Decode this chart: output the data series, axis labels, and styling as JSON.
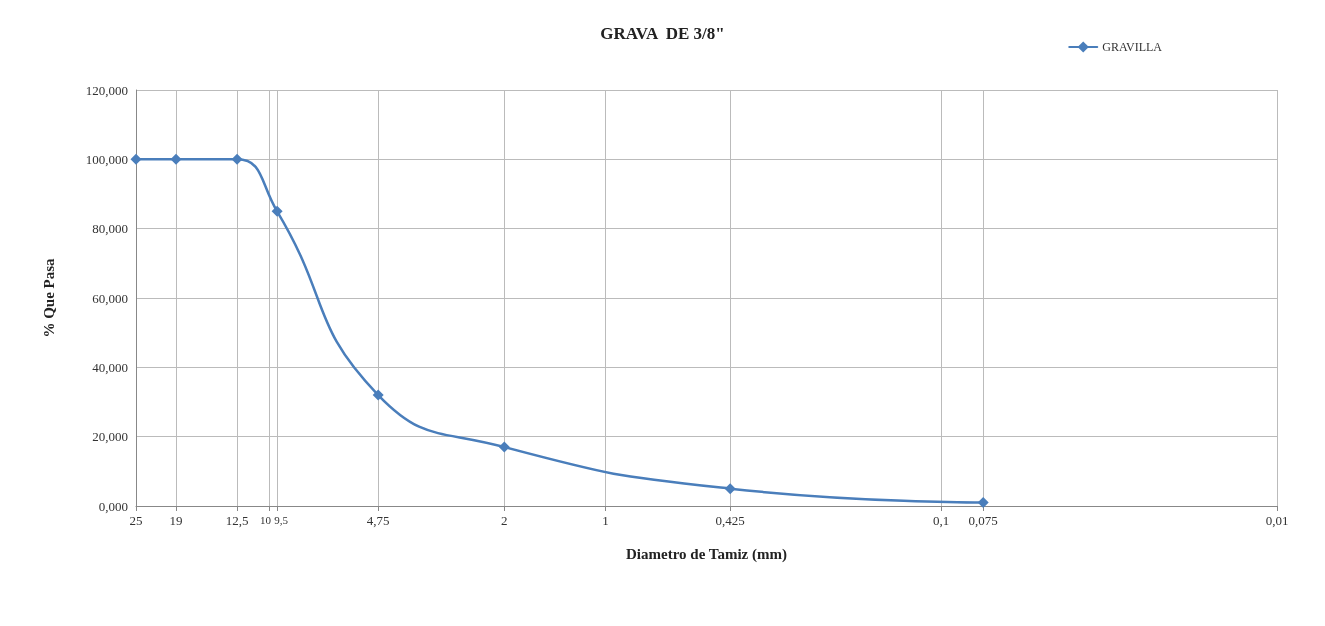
{
  "chart_data": {
    "type": "line",
    "title": "GRAVA  DE 3/8\"",
    "xlabel": "Diametro de Tamiz (mm)",
    "ylabel": "% Que Pasa",
    "log": "x",
    "x": [
      25,
      19,
      12.5,
      9.5,
      4.75,
      2,
      0.425,
      0.075
    ],
    "series": [
      {
        "name": "GRAVILLA",
        "color": "#4a7ebb",
        "values": [
          100,
          100,
          100,
          85,
          32,
          17,
          5,
          1
        ]
      }
    ],
    "xlim": [
      25,
      0.01
    ],
    "xticks": [
      25,
      19,
      {
        "value": 12.5,
        "label": "12,5"
      },
      10,
      {
        "value": 9.5,
        "label": "9,5"
      },
      {
        "value": 4.75,
        "label": "4,75"
      },
      2,
      1,
      {
        "value": 0.425,
        "label": "0,425"
      },
      {
        "value": 0.1,
        "label": "0,1"
      },
      {
        "value": 0.075,
        "label": "0,075"
      },
      {
        "value": 0.01,
        "label": "0,01"
      }
    ],
    "ylim": [
      0,
      120
    ],
    "yticks": [
      {
        "value": 0,
        "label": "0,000"
      },
      {
        "value": 20,
        "label": "20,000"
      },
      {
        "value": 40,
        "label": "40,000"
      },
      {
        "value": 60,
        "label": "60,000"
      },
      {
        "value": 80,
        "label": "80,000"
      },
      {
        "value": 100,
        "label": "100,000"
      },
      {
        "value": 120,
        "label": "120,000"
      }
    ],
    "grid": true,
    "legend": "top right",
    "marker": "diamond",
    "line_style": "solid"
  }
}
